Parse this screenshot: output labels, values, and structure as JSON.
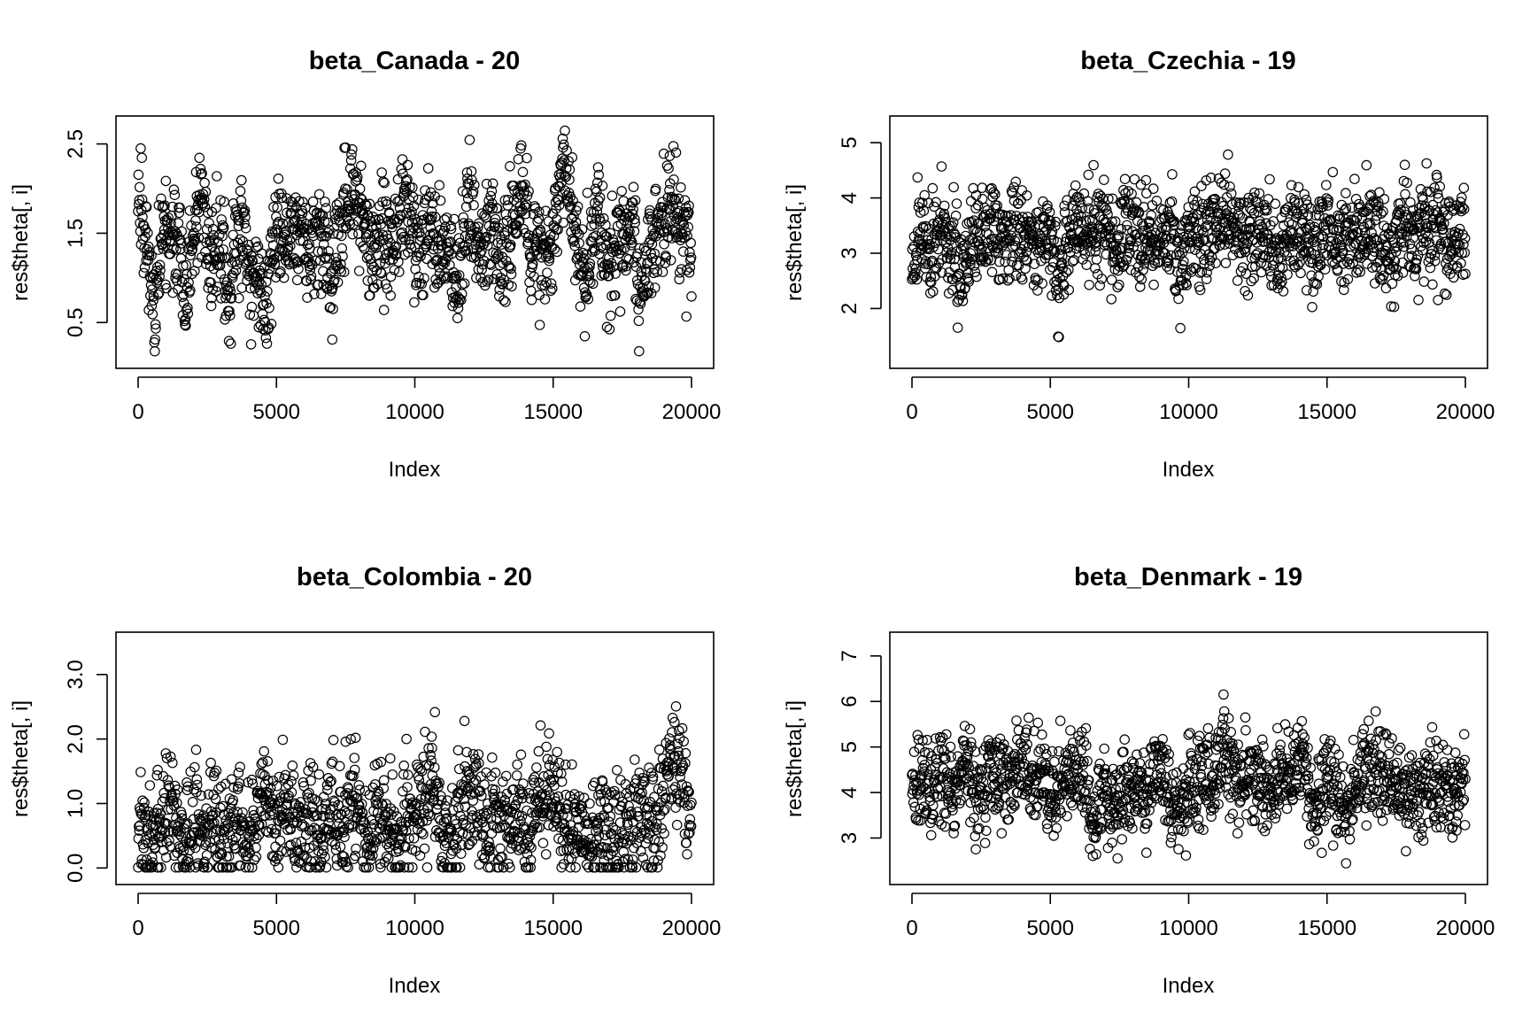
{
  "chart_data": [
    {
      "type": "scatter",
      "title": "beta_Canada - 20",
      "xlabel": "Index",
      "ylabel": "res$theta[, i]",
      "xlim": [
        0,
        20000
      ],
      "ylim": [
        0.1,
        2.7
      ],
      "xticks": [
        "0",
        "5000",
        "10000",
        "15000",
        "20000"
      ],
      "yticks": [
        "0.5",
        "1.5",
        "2.5"
      ],
      "trace": [
        [
          0,
          2.1
        ],
        [
          300,
          1.5
        ],
        [
          600,
          0.6
        ],
        [
          900,
          1.5
        ],
        [
          1200,
          1.4
        ],
        [
          1500,
          1.5
        ],
        [
          1700,
          0.5
        ],
        [
          2000,
          1.4
        ],
        [
          2300,
          1.9
        ],
        [
          2600,
          1.2
        ],
        [
          3000,
          1.4
        ],
        [
          3300,
          0.7
        ],
        [
          3600,
          1.7
        ],
        [
          4000,
          1.2
        ],
        [
          4300,
          0.9
        ],
        [
          4600,
          0.7
        ],
        [
          5000,
          1.5
        ],
        [
          5400,
          1.4
        ],
        [
          5800,
          1.6
        ],
        [
          6200,
          1.2
        ],
        [
          6600,
          1.5
        ],
        [
          7000,
          1.0
        ],
        [
          7300,
          1.4
        ],
        [
          7600,
          2.0
        ],
        [
          8000,
          1.8
        ],
        [
          8400,
          1.2
        ],
        [
          8800,
          1.5
        ],
        [
          9200,
          1.3
        ],
        [
          9600,
          1.8
        ],
        [
          10000,
          1.4
        ],
        [
          10400,
          1.6
        ],
        [
          10800,
          1.3
        ],
        [
          11200,
          1.4
        ],
        [
          11500,
          0.8
        ],
        [
          11900,
          1.9
        ],
        [
          12300,
          1.3
        ],
        [
          12700,
          1.5
        ],
        [
          13100,
          1.2
        ],
        [
          13500,
          1.4
        ],
        [
          13800,
          2.2
        ],
        [
          14200,
          1.4
        ],
        [
          14600,
          1.2
        ],
        [
          15000,
          1.5
        ],
        [
          15400,
          2.3
        ],
        [
          15800,
          1.4
        ],
        [
          16200,
          1.1
        ],
        [
          16600,
          1.8
        ],
        [
          17000,
          1.1
        ],
        [
          17400,
          1.3
        ],
        [
          17800,
          1.6
        ],
        [
          18100,
          0.8
        ],
        [
          18500,
          1.3
        ],
        [
          18900,
          1.6
        ],
        [
          19300,
          1.8
        ],
        [
          19700,
          1.5
        ],
        [
          20000,
          1.3
        ]
      ],
      "spread": 0.28,
      "seed": 11
    },
    {
      "type": "scatter",
      "title": "beta_Czechia - 19",
      "xlabel": "Index",
      "ylabel": "res$theta[, i]",
      "xlim": [
        0,
        20000
      ],
      "ylim": [
        1.1,
        5.3
      ],
      "xticks": [
        "0",
        "5000",
        "10000",
        "15000",
        "20000"
      ],
      "yticks": [
        "2",
        "3",
        "4",
        "5"
      ],
      "trace": [
        [
          0,
          2.8
        ],
        [
          300,
          3.4
        ],
        [
          700,
          3.1
        ],
        [
          1100,
          3.5
        ],
        [
          1500,
          3.0
        ],
        [
          1800,
          2.4
        ],
        [
          2200,
          3.3
        ],
        [
          2600,
          3.1
        ],
        [
          3000,
          3.5
        ],
        [
          3400,
          3.2
        ],
        [
          3800,
          3.6
        ],
        [
          4200,
          3.2
        ],
        [
          4600,
          3.4
        ],
        [
          5000,
          3.3
        ],
        [
          5300,
          2.4
        ],
        [
          5700,
          3.3
        ],
        [
          6100,
          3.5
        ],
        [
          6500,
          3.2
        ],
        [
          6900,
          3.7
        ],
        [
          7300,
          2.8
        ],
        [
          7700,
          3.6
        ],
        [
          8100,
          3.3
        ],
        [
          8500,
          3.4
        ],
        [
          8900,
          3.2
        ],
        [
          9300,
          3.5
        ],
        [
          9700,
          2.9
        ],
        [
          10100,
          3.4
        ],
        [
          10500,
          3.3
        ],
        [
          10900,
          3.6
        ],
        [
          11300,
          3.5
        ],
        [
          11700,
          3.4
        ],
        [
          12100,
          3.3
        ],
        [
          12500,
          3.5
        ],
        [
          12900,
          3.3
        ],
        [
          13300,
          2.9
        ],
        [
          13700,
          3.6
        ],
        [
          14100,
          3.3
        ],
        [
          14500,
          2.9
        ],
        [
          14900,
          3.5
        ],
        [
          15300,
          3.3
        ],
        [
          15700,
          3.4
        ],
        [
          16100,
          3.3
        ],
        [
          16500,
          3.5
        ],
        [
          16900,
          3.2
        ],
        [
          17300,
          3.0
        ],
        [
          17700,
          3.6
        ],
        [
          18100,
          3.3
        ],
        [
          18500,
          3.4
        ],
        [
          18900,
          3.5
        ],
        [
          19300,
          3.2
        ],
        [
          19700,
          3.4
        ],
        [
          20000,
          3.4
        ]
      ],
      "spread": 0.42,
      "seed": 23
    },
    {
      "type": "scatter",
      "title": "beta_Colombia - 20",
      "xlabel": "Index",
      "ylabel": "res$theta[, i]",
      "xlim": [
        0,
        20000
      ],
      "ylim": [
        -0.1,
        3.5
      ],
      "xticks": [
        "0",
        "5000",
        "10000",
        "15000",
        "20000"
      ],
      "yticks": [
        "0.0",
        "1.0",
        "2.0",
        "3.0"
      ],
      "trace": [
        [
          0,
          0.8
        ],
        [
          300,
          0.3
        ],
        [
          700,
          0.6
        ],
        [
          1100,
          1.0
        ],
        [
          1500,
          0.4
        ],
        [
          1900,
          0.7
        ],
        [
          2300,
          0.3
        ],
        [
          2700,
          0.8
        ],
        [
          3100,
          0.2
        ],
        [
          3500,
          0.9
        ],
        [
          3900,
          0.5
        ],
        [
          4300,
          0.8
        ],
        [
          4600,
          1.6
        ],
        [
          5000,
          0.6
        ],
        [
          5400,
          0.9
        ],
        [
          5800,
          0.5
        ],
        [
          6200,
          0.8
        ],
        [
          6600,
          0.4
        ],
        [
          7000,
          1.0
        ],
        [
          7400,
          0.6
        ],
        [
          7800,
          1.2
        ],
        [
          8200,
          0.5
        ],
        [
          8600,
          0.6
        ],
        [
          9000,
          0.8
        ],
        [
          9400,
          0.4
        ],
        [
          9800,
          0.9
        ],
        [
          10200,
          0.7
        ],
        [
          10600,
          1.4
        ],
        [
          11000,
          0.5
        ],
        [
          11300,
          0.2
        ],
        [
          11700,
          0.9
        ],
        [
          12100,
          1.1
        ],
        [
          12500,
          0.6
        ],
        [
          12900,
          0.9
        ],
        [
          13300,
          0.7
        ],
        [
          13700,
          0.8
        ],
        [
          14100,
          0.4
        ],
        [
          14500,
          1.0
        ],
        [
          14900,
          1.3
        ],
        [
          15300,
          0.8
        ],
        [
          15700,
          0.6
        ],
        [
          16100,
          0.5
        ],
        [
          16500,
          0.4
        ],
        [
          16900,
          0.7
        ],
        [
          17300,
          0.5
        ],
        [
          17700,
          0.6
        ],
        [
          18100,
          1.0
        ],
        [
          18500,
          0.4
        ],
        [
          18900,
          1.0
        ],
        [
          19300,
          1.8
        ],
        [
          19700,
          1.4
        ],
        [
          20000,
          0.6
        ]
      ],
      "spread": 0.42,
      "seed": 37
    },
    {
      "type": "scatter",
      "title": "beta_Denmark - 19",
      "xlabel": "Index",
      "ylabel": "res$theta[, i]",
      "xlim": [
        0,
        20000
      ],
      "ylim": [
        2.2,
        7.3
      ],
      "xticks": [
        "0",
        "5000",
        "10000",
        "15000",
        "20000"
      ],
      "yticks": [
        "3",
        "4",
        "5",
        "6",
        "7"
      ],
      "trace": [
        [
          0,
          4.0
        ],
        [
          300,
          4.3
        ],
        [
          700,
          3.9
        ],
        [
          1100,
          4.6
        ],
        [
          1500,
          3.8
        ],
        [
          1900,
          4.9
        ],
        [
          2300,
          3.6
        ],
        [
          2700,
          4.2
        ],
        [
          3100,
          4.5
        ],
        [
          3500,
          4.3
        ],
        [
          3900,
          4.7
        ],
        [
          4300,
          4.2
        ],
        [
          4700,
          4.5
        ],
        [
          5000,
          3.8
        ],
        [
          5400,
          4.4
        ],
        [
          5800,
          4.2
        ],
        [
          6200,
          4.6
        ],
        [
          6500,
          3.2
        ],
        [
          6900,
          4.0
        ],
        [
          7300,
          3.5
        ],
        [
          7700,
          4.1
        ],
        [
          8100,
          4.3
        ],
        [
          8500,
          4.0
        ],
        [
          8900,
          4.5
        ],
        [
          9300,
          4.1
        ],
        [
          9700,
          3.5
        ],
        [
          10100,
          4.2
        ],
        [
          10500,
          4.4
        ],
        [
          10900,
          4.3
        ],
        [
          11300,
          4.9
        ],
        [
          11700,
          4.1
        ],
        [
          12100,
          4.6
        ],
        [
          12500,
          4.3
        ],
        [
          12900,
          4.1
        ],
        [
          13300,
          4.4
        ],
        [
          13700,
          4.2
        ],
        [
          14100,
          5.0
        ],
        [
          14500,
          3.6
        ],
        [
          14900,
          4.3
        ],
        [
          15300,
          4.1
        ],
        [
          15700,
          3.7
        ],
        [
          16100,
          4.2
        ],
        [
          16500,
          4.5
        ],
        [
          16900,
          4.3
        ],
        [
          17300,
          4.1
        ],
        [
          17700,
          4.0
        ],
        [
          18100,
          4.1
        ],
        [
          18500,
          3.8
        ],
        [
          18900,
          4.3
        ],
        [
          19300,
          4.1
        ],
        [
          19700,
          3.9
        ],
        [
          20000,
          4.1
        ]
      ],
      "spread": 0.48,
      "seed": 51
    }
  ]
}
